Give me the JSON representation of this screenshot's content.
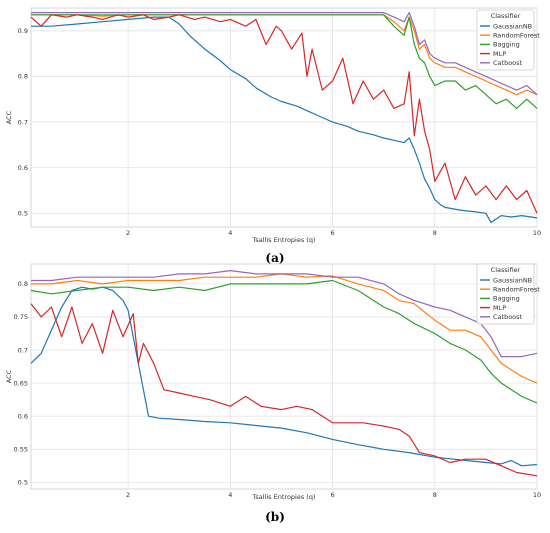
{
  "chart_data": [
    {
      "type": "line",
      "caption": "(a)",
      "xlabel": "Tsallis Entropies (q)",
      "ylabel": "ACC",
      "xlim": [
        0.1,
        10
      ],
      "ylim": [
        0.47,
        0.95
      ],
      "xticks": [
        2,
        4,
        6,
        8,
        10
      ],
      "yticks": [
        0.5,
        0.6,
        0.7,
        0.8,
        0.9
      ],
      "grid": true,
      "legend_title": "Classifier",
      "legend_position": "top-right",
      "series": [
        {
          "name": "GaussianNB",
          "color": "#1f77b4",
          "x": [
            0.1,
            0.5,
            1,
            1.5,
            2,
            2.5,
            2.8,
            3,
            3.2,
            3.5,
            3.8,
            4,
            4.3,
            4.5,
            4.8,
            5,
            5.3,
            5.5,
            5.8,
            6,
            6.3,
            6.5,
            6.8,
            7,
            7.2,
            7.4,
            7.5,
            7.6,
            7.7,
            7.8,
            7.9,
            8,
            8.1,
            8.2,
            8.5,
            8.8,
            9,
            9.1,
            9.3,
            9.5,
            9.7,
            10
          ],
          "values": [
            0.91,
            0.91,
            0.915,
            0.92,
            0.925,
            0.93,
            0.93,
            0.915,
            0.89,
            0.86,
            0.835,
            0.815,
            0.795,
            0.775,
            0.755,
            0.745,
            0.735,
            0.725,
            0.71,
            0.7,
            0.69,
            0.68,
            0.672,
            0.665,
            0.66,
            0.655,
            0.665,
            0.64,
            0.61,
            0.575,
            0.555,
            0.53,
            0.52,
            0.513,
            0.507,
            0.503,
            0.5,
            0.48,
            0.495,
            0.492,
            0.495,
            0.49
          ]
        },
        {
          "name": "RandomForest",
          "color": "#ff7f0e",
          "x": [
            0.1,
            0.5,
            1,
            1.5,
            2,
            2.5,
            3,
            3.5,
            4,
            4.5,
            5,
            5.5,
            6,
            6.5,
            7,
            7.2,
            7.4,
            7.5,
            7.6,
            7.7,
            7.8,
            7.9,
            8,
            8.2,
            8.4,
            8.6,
            8.8,
            9,
            9.2,
            9.4,
            9.6,
            9.8,
            10
          ],
          "values": [
            0.935,
            0.935,
            0.935,
            0.932,
            0.935,
            0.935,
            0.935,
            0.935,
            0.935,
            0.935,
            0.935,
            0.935,
            0.935,
            0.935,
            0.935,
            0.92,
            0.9,
            0.93,
            0.9,
            0.86,
            0.87,
            0.84,
            0.83,
            0.82,
            0.82,
            0.81,
            0.8,
            0.79,
            0.78,
            0.77,
            0.76,
            0.77,
            0.76
          ]
        },
        {
          "name": "Bagging",
          "color": "#2ca02c",
          "x": [
            0.1,
            0.5,
            1,
            1.5,
            2,
            2.5,
            3,
            3.5,
            4,
            4.5,
            5,
            5.5,
            6,
            6.5,
            7,
            7.2,
            7.4,
            7.5,
            7.6,
            7.7,
            7.8,
            7.9,
            8,
            8.2,
            8.4,
            8.6,
            8.8,
            9,
            9.2,
            9.4,
            9.6,
            9.8,
            10
          ],
          "values": [
            0.935,
            0.935,
            0.935,
            0.935,
            0.935,
            0.935,
            0.935,
            0.935,
            0.935,
            0.935,
            0.935,
            0.935,
            0.935,
            0.935,
            0.935,
            0.91,
            0.89,
            0.93,
            0.87,
            0.84,
            0.83,
            0.8,
            0.78,
            0.79,
            0.79,
            0.77,
            0.78,
            0.76,
            0.74,
            0.75,
            0.73,
            0.75,
            0.73
          ]
        },
        {
          "name": "MLP",
          "color": "#d62728",
          "x": [
            0.1,
            0.3,
            0.5,
            0.8,
            1,
            1.3,
            1.5,
            1.8,
            2,
            2.3,
            2.5,
            2.8,
            3,
            3.3,
            3.5,
            3.8,
            4,
            4.3,
            4.5,
            4.7,
            4.9,
            5,
            5.2,
            5.4,
            5.5,
            5.6,
            5.8,
            6,
            6.2,
            6.4,
            6.6,
            6.8,
            7,
            7.2,
            7.4,
            7.5,
            7.6,
            7.7,
            7.8,
            7.9,
            8,
            8.2,
            8.4,
            8.6,
            8.8,
            9,
            9.2,
            9.4,
            9.6,
            9.8,
            10
          ],
          "values": [
            0.93,
            0.91,
            0.935,
            0.93,
            0.935,
            0.93,
            0.925,
            0.935,
            0.93,
            0.935,
            0.925,
            0.93,
            0.935,
            0.925,
            0.93,
            0.92,
            0.925,
            0.91,
            0.925,
            0.87,
            0.91,
            0.9,
            0.86,
            0.895,
            0.8,
            0.86,
            0.77,
            0.79,
            0.84,
            0.74,
            0.79,
            0.75,
            0.77,
            0.73,
            0.74,
            0.81,
            0.67,
            0.75,
            0.68,
            0.64,
            0.57,
            0.61,
            0.53,
            0.58,
            0.54,
            0.56,
            0.53,
            0.56,
            0.53,
            0.55,
            0.5
          ]
        },
        {
          "name": "Catboost",
          "color": "#9467bd",
          "x": [
            0.1,
            0.5,
            1,
            1.5,
            2,
            2.5,
            3,
            3.5,
            4,
            4.5,
            5,
            5.5,
            6,
            6.5,
            7,
            7.2,
            7.4,
            7.5,
            7.6,
            7.7,
            7.8,
            7.9,
            8,
            8.2,
            8.4,
            8.6,
            8.8,
            9,
            9.2,
            9.4,
            9.6,
            9.8,
            10
          ],
          "values": [
            0.94,
            0.94,
            0.94,
            0.94,
            0.94,
            0.94,
            0.94,
            0.94,
            0.94,
            0.94,
            0.94,
            0.94,
            0.94,
            0.94,
            0.94,
            0.93,
            0.92,
            0.94,
            0.91,
            0.87,
            0.88,
            0.85,
            0.84,
            0.83,
            0.83,
            0.82,
            0.81,
            0.8,
            0.79,
            0.78,
            0.77,
            0.78,
            0.76
          ]
        }
      ]
    },
    {
      "type": "line",
      "caption": "(b)",
      "xlabel": "Tsallis Entropies (q)",
      "ylabel": "ACC",
      "xlim": [
        0.1,
        10
      ],
      "ylim": [
        0.49,
        0.83
      ],
      "xticks": [
        2,
        4,
        6,
        8,
        10
      ],
      "yticks": [
        0.5,
        0.55,
        0.6,
        0.65,
        0.7,
        0.75,
        0.8
      ],
      "grid": true,
      "legend_title": "Classifier",
      "legend_position": "top-right",
      "series": [
        {
          "name": "GaussianNB",
          "color": "#1f77b4",
          "x": [
            0.1,
            0.3,
            0.5,
            0.7,
            0.9,
            1.1,
            1.3,
            1.5,
            1.7,
            1.9,
            2.0,
            2.1,
            2.2,
            2.3,
            2.4,
            2.6,
            3,
            3.5,
            4,
            4.5,
            5,
            5.5,
            6,
            6.5,
            7,
            7.5,
            8,
            8.5,
            9,
            9.3,
            9.5,
            9.7,
            10
          ],
          "values": [
            0.68,
            0.695,
            0.73,
            0.765,
            0.79,
            0.795,
            0.792,
            0.795,
            0.79,
            0.775,
            0.76,
            0.72,
            0.68,
            0.64,
            0.6,
            0.597,
            0.595,
            0.592,
            0.59,
            0.586,
            0.582,
            0.575,
            0.565,
            0.557,
            0.55,
            0.545,
            0.538,
            0.534,
            0.53,
            0.528,
            0.533,
            0.525,
            0.527
          ]
        },
        {
          "name": "RandomForest",
          "color": "#ff7f0e",
          "x": [
            0.1,
            0.5,
            1,
            1.5,
            2,
            2.5,
            3,
            3.5,
            4,
            4.5,
            5,
            5.5,
            6,
            6.5,
            7,
            7.3,
            7.6,
            8,
            8.3,
            8.6,
            8.9,
            9.1,
            9.3,
            9.5,
            9.7,
            10
          ],
          "values": [
            0.8,
            0.8,
            0.805,
            0.8,
            0.805,
            0.805,
            0.805,
            0.81,
            0.81,
            0.81,
            0.815,
            0.81,
            0.812,
            0.8,
            0.79,
            0.775,
            0.77,
            0.745,
            0.73,
            0.73,
            0.72,
            0.7,
            0.68,
            0.67,
            0.66,
            0.65
          ]
        },
        {
          "name": "Bagging",
          "color": "#2ca02c",
          "x": [
            0.1,
            0.5,
            1,
            1.5,
            2,
            2.5,
            3,
            3.5,
            4,
            4.5,
            5,
            5.5,
            6,
            6.5,
            7,
            7.3,
            7.6,
            8,
            8.3,
            8.6,
            8.9,
            9.1,
            9.3,
            9.5,
            9.7,
            10
          ],
          "values": [
            0.79,
            0.785,
            0.79,
            0.795,
            0.795,
            0.79,
            0.795,
            0.79,
            0.8,
            0.8,
            0.8,
            0.8,
            0.805,
            0.79,
            0.765,
            0.755,
            0.74,
            0.725,
            0.71,
            0.7,
            0.685,
            0.665,
            0.65,
            0.64,
            0.63,
            0.62
          ]
        },
        {
          "name": "MLP",
          "color": "#d62728",
          "x": [
            0.1,
            0.3,
            0.5,
            0.7,
            0.9,
            1.1,
            1.3,
            1.5,
            1.7,
            1.9,
            2.1,
            2.2,
            2.3,
            2.5,
            2.7,
            3,
            3.3,
            3.6,
            4,
            4.3,
            4.6,
            5,
            5.3,
            5.6,
            6,
            6.3,
            6.6,
            7,
            7.3,
            7.5,
            7.7,
            8,
            8.3,
            8.6,
            9,
            9.3,
            9.6,
            10
          ],
          "values": [
            0.77,
            0.75,
            0.765,
            0.72,
            0.765,
            0.71,
            0.74,
            0.695,
            0.76,
            0.72,
            0.755,
            0.68,
            0.71,
            0.68,
            0.64,
            0.635,
            0.63,
            0.625,
            0.615,
            0.63,
            0.615,
            0.61,
            0.615,
            0.61,
            0.59,
            0.59,
            0.59,
            0.585,
            0.58,
            0.57,
            0.545,
            0.54,
            0.53,
            0.535,
            0.535,
            0.525,
            0.515,
            0.51
          ]
        },
        {
          "name": "Catboost",
          "color": "#9467bd",
          "x": [
            0.1,
            0.5,
            1,
            1.5,
            2,
            2.5,
            3,
            3.5,
            4,
            4.5,
            5,
            5.5,
            6,
            6.5,
            7,
            7.3,
            7.6,
            8,
            8.3,
            8.6,
            8.9,
            9.1,
            9.3,
            9.5,
            9.7,
            10
          ],
          "values": [
            0.805,
            0.805,
            0.81,
            0.81,
            0.81,
            0.81,
            0.815,
            0.815,
            0.82,
            0.815,
            0.815,
            0.815,
            0.81,
            0.81,
            0.8,
            0.785,
            0.775,
            0.765,
            0.76,
            0.75,
            0.74,
            0.72,
            0.69,
            0.69,
            0.69,
            0.695
          ]
        }
      ]
    }
  ]
}
